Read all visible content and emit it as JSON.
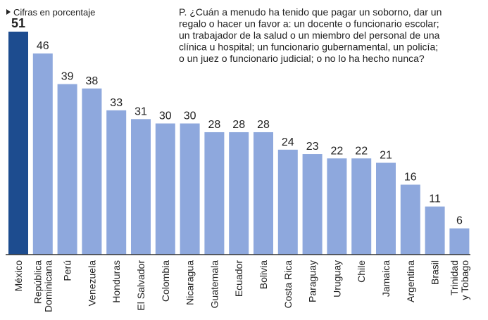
{
  "chart_data": {
    "type": "bar",
    "subtitle": "Cifras en porcentaje",
    "question": [
      "P. ¿Cuán a menudo ha tenido que pagar un soborno, dar un",
      "regalo o hacer un favor a: un docente o funcionario escolar;",
      "un trabajador de la salud o un miembro del personal de una",
      "clínica u hospital; un funcionario gubernamental, un policía;",
      "o un juez o funcionario judicial; o no lo ha hecho nunca?"
    ],
    "categories": [
      "México",
      "República Dominicana",
      "Perú",
      "Venezuela",
      "Honduras",
      "El Salvador",
      "Colombia",
      "Nicaragua",
      "Guatemala",
      "Ecuador",
      "Bolivia",
      "Costa Rica",
      "Paraguay",
      "Uruguay",
      "Chile",
      "Jamaica",
      "Argentina",
      "Brasil",
      "Trinidad y Tobago"
    ],
    "values": [
      51,
      46,
      39,
      38,
      33,
      31,
      30,
      30,
      28,
      28,
      28,
      24,
      23,
      22,
      22,
      21,
      16,
      11,
      6
    ],
    "colors": [
      "#1d4c8f",
      "#8ea8dd",
      "#8ea8dd",
      "#8ea8dd",
      "#8ea8dd",
      "#8ea8dd",
      "#8ea8dd",
      "#8ea8dd",
      "#8ea8dd",
      "#8ea8dd",
      "#8ea8dd",
      "#8ea8dd",
      "#8ea8dd",
      "#8ea8dd",
      "#8ea8dd",
      "#8ea8dd",
      "#8ea8dd",
      "#8ea8dd",
      "#8ea8dd"
    ],
    "ylim": [
      0,
      51
    ]
  }
}
